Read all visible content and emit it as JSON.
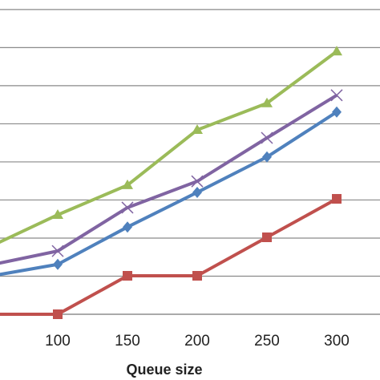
{
  "chart_data": {
    "type": "line",
    "x_label": "Queue size",
    "categories": [
      null,
      "100",
      "150",
      "200",
      "250",
      "300"
    ],
    "ylim": [
      0,
      8.25
    ],
    "yticks": [
      0,
      1,
      2,
      3,
      4,
      5,
      6,
      7,
      8
    ],
    "grid": true,
    "series": [
      {
        "color": "#9bbb59",
        "marker": "triangle",
        "values": [
          1.75,
          2.61,
          3.39,
          4.84,
          5.54,
          6.9
        ]
      },
      {
        "color": "#8064a2",
        "marker": "cross",
        "values": [
          1.28,
          1.66,
          2.8,
          3.49,
          4.63,
          5.75
        ]
      },
      {
        "color": "#4f81bd",
        "marker": "diamond",
        "values": [
          0.99,
          1.31,
          2.29,
          3.2,
          4.13,
          5.31
        ]
      },
      {
        "color": "#c0504d",
        "marker": "square",
        "values": [
          0,
          0,
          1.01,
          1.01,
          2.02,
          3.03
        ]
      }
    ]
  }
}
